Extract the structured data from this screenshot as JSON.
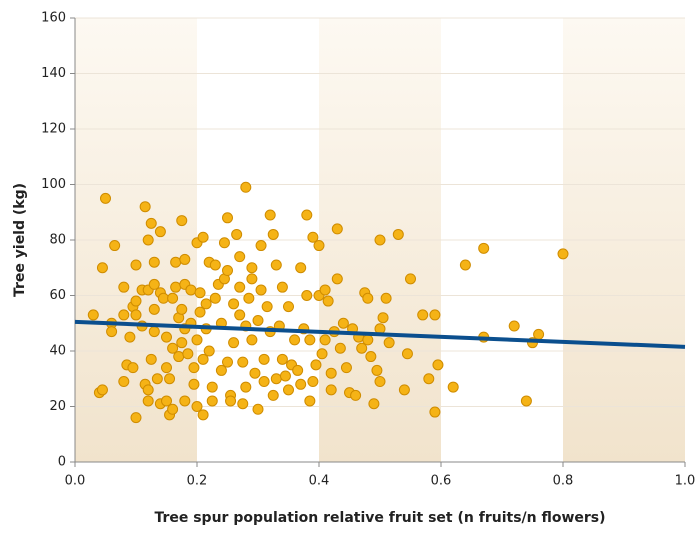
{
  "chart_data": {
    "type": "scatter",
    "xlabel": "Tree spur population relative fruit set (n fruits/n flowers)",
    "ylabel": "Tree yield (kg)",
    "xlim": [
      0,
      1
    ],
    "ylim": [
      0,
      160
    ],
    "xticks": [
      {
        "value": 0,
        "label": "0.0"
      },
      0.2,
      0.4,
      0.6,
      0.8,
      {
        "value": 1,
        "label": "1.0"
      }
    ],
    "yticks": [
      0,
      20,
      40,
      60,
      80,
      100,
      120,
      140,
      160
    ],
    "grid": true,
    "color": "#f5b316",
    "x": [
      0.03,
      0.04,
      0.045,
      0.045,
      0.05,
      0.06,
      0.06,
      0.065,
      0.08,
      0.08,
      0.08,
      0.085,
      0.09,
      0.095,
      0.095,
      0.1,
      0.1,
      0.1,
      0.1,
      0.11,
      0.11,
      0.115,
      0.115,
      0.12,
      0.12,
      0.12,
      0.12,
      0.125,
      0.125,
      0.13,
      0.13,
      0.13,
      0.13,
      0.135,
      0.14,
      0.14,
      0.14,
      0.145,
      0.15,
      0.15,
      0.15,
      0.155,
      0.155,
      0.16,
      0.16,
      0.16,
      0.165,
      0.165,
      0.17,
      0.17,
      0.175,
      0.175,
      0.175,
      0.18,
      0.18,
      0.18,
      0.18,
      0.185,
      0.19,
      0.19,
      0.195,
      0.195,
      0.2,
      0.2,
      0.2,
      0.205,
      0.205,
      0.21,
      0.21,
      0.21,
      0.215,
      0.215,
      0.22,
      0.22,
      0.225,
      0.225,
      0.23,
      0.23,
      0.235,
      0.24,
      0.24,
      0.245,
      0.245,
      0.25,
      0.25,
      0.25,
      0.255,
      0.255,
      0.26,
      0.26,
      0.265,
      0.27,
      0.27,
      0.27,
      0.275,
      0.275,
      0.28,
      0.28,
      0.28,
      0.285,
      0.29,
      0.29,
      0.29,
      0.295,
      0.3,
      0.3,
      0.305,
      0.305,
      0.31,
      0.31,
      0.315,
      0.32,
      0.32,
      0.325,
      0.325,
      0.33,
      0.33,
      0.335,
      0.34,
      0.34,
      0.345,
      0.35,
      0.35,
      0.355,
      0.36,
      0.365,
      0.37,
      0.37,
      0.375,
      0.38,
      0.38,
      0.385,
      0.385,
      0.39,
      0.39,
      0.395,
      0.4,
      0.4,
      0.405,
      0.41,
      0.41,
      0.415,
      0.42,
      0.42,
      0.425,
      0.43,
      0.43,
      0.435,
      0.44,
      0.445,
      0.45,
      0.455,
      0.46,
      0.465,
      0.47,
      0.475,
      0.48,
      0.48,
      0.485,
      0.49,
      0.495,
      0.5,
      0.5,
      0.5,
      0.505,
      0.51,
      0.515,
      0.53,
      0.54,
      0.545,
      0.55,
      0.57,
      0.58,
      0.59,
      0.59,
      0.595,
      0.62,
      0.64,
      0.67,
      0.67,
      0.72,
      0.74,
      0.75,
      0.76,
      0.8
    ],
    "y": [
      53,
      25,
      26,
      70,
      95,
      50,
      47,
      78,
      29,
      63,
      53,
      35,
      45,
      56,
      34,
      16,
      71,
      58,
      53,
      49,
      62,
      28,
      92,
      62,
      26,
      80,
      22,
      86,
      37,
      55,
      64,
      72,
      47,
      30,
      21,
      83,
      61,
      59,
      45,
      34,
      22,
      30,
      17,
      41,
      19,
      59,
      72,
      63,
      52,
      38,
      87,
      55,
      43,
      73,
      64,
      22,
      48,
      39,
      62,
      50,
      34,
      28,
      20,
      79,
      44,
      61,
      54,
      81,
      37,
      17,
      57,
      48,
      40,
      72,
      27,
      22,
      59,
      71,
      64,
      33,
      50,
      79,
      66,
      69,
      88,
      36,
      24,
      22,
      43,
      57,
      82,
      74,
      63,
      53,
      21,
      36,
      99,
      49,
      27,
      59,
      70,
      66,
      44,
      32,
      19,
      51,
      78,
      62,
      37,
      29,
      56,
      89,
      47,
      82,
      24,
      71,
      30,
      49,
      63,
      37,
      31,
      26,
      56,
      35,
      44,
      33,
      70,
      28,
      48,
      89,
      60,
      22,
      44,
      81,
      29,
      35,
      78,
      60,
      39,
      62,
      44,
      58,
      26,
      32,
      47,
      84,
      66,
      41,
      50,
      34,
      25,
      48,
      24,
      45,
      41,
      61,
      59,
      44,
      38,
      21,
      33,
      80,
      48,
      29,
      52,
      59,
      43,
      82,
      26,
      39,
      66,
      53,
      30,
      18,
      53,
      35,
      27,
      71,
      77,
      45,
      49,
      22,
      43,
      46,
      75
    ],
    "trend": {
      "color": "#0b4f8e",
      "x": [
        0,
        1
      ],
      "y": [
        50.5,
        41.5
      ]
    }
  }
}
